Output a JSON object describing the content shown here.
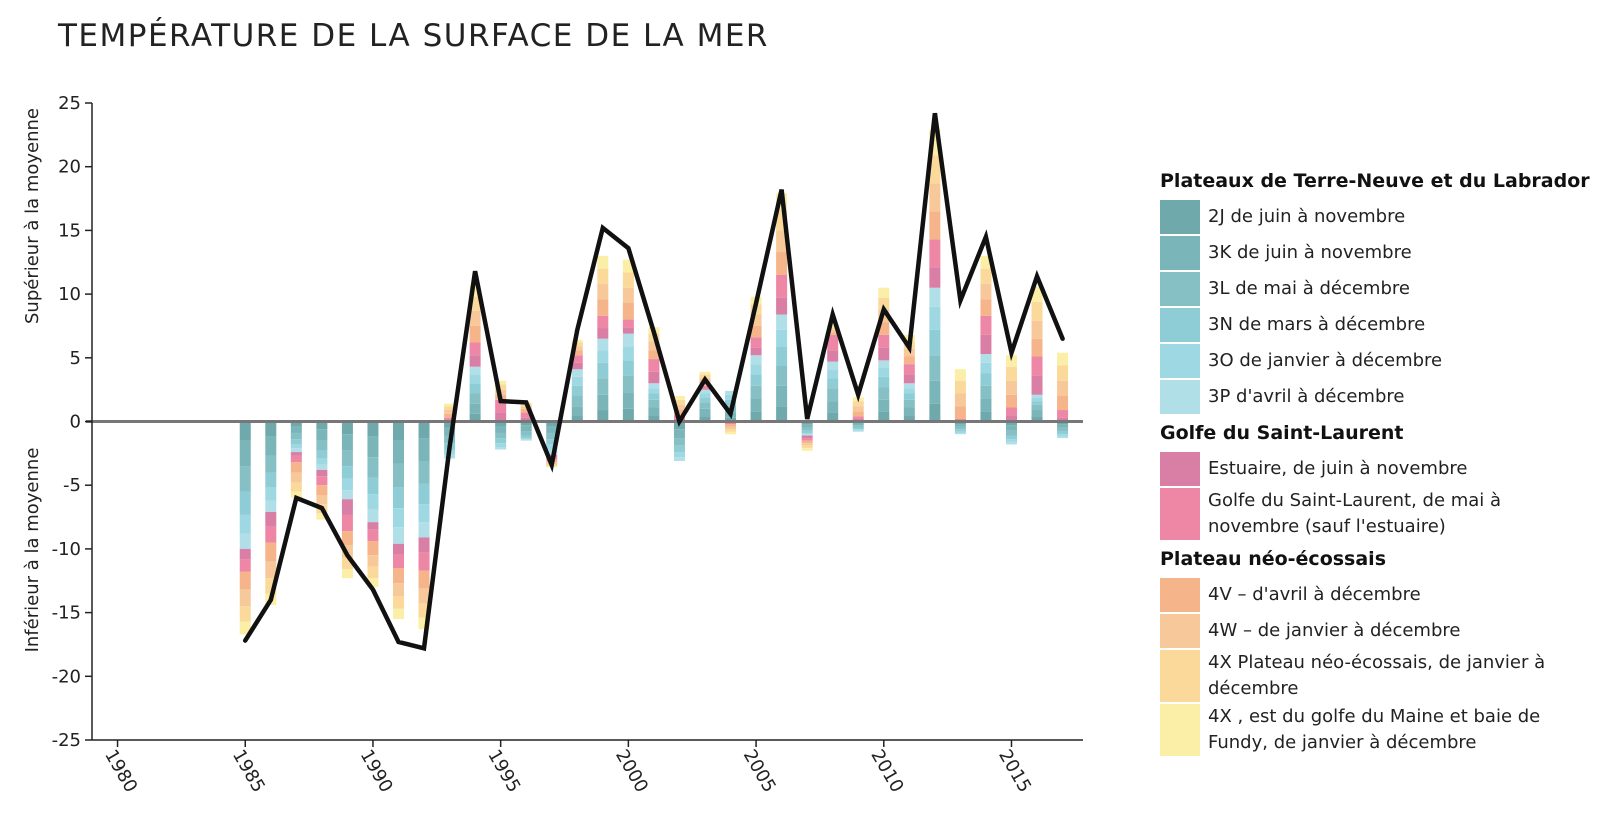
{
  "chart_data": {
    "type": "bar",
    "title": "TEMPÉRATURE DE LA SURFACE DE LA MER",
    "ylabel_top": "Supérieur à la moyenne",
    "ylabel_bottom": "Inférieur à la moyenne",
    "ylim": [
      -25,
      25
    ],
    "yticks": [
      25,
      20,
      15,
      10,
      5,
      0,
      -5,
      -10,
      -15,
      -20,
      -25
    ],
    "xlim": [
      1979,
      2017.8
    ],
    "xticks": [
      1980,
      1985,
      1990,
      1995,
      2000,
      2005,
      2010,
      2015
    ],
    "x": [
      1985,
      1986,
      1987,
      1988,
      1989,
      1990,
      1991,
      1992,
      1993,
      1994,
      1995,
      1996,
      1997,
      1998,
      1999,
      2000,
      2001,
      2002,
      2003,
      2004,
      2005,
      2006,
      2007,
      2008,
      2009,
      2010,
      2011,
      2012,
      2013,
      2014,
      2015,
      2016,
      2017
    ],
    "series": [
      {
        "name": "2J de juin à novembre",
        "color": "#6fa9ab",
        "values": [
          -1.5,
          -1.2,
          -0.4,
          -0.6,
          -1.0,
          -1.2,
          -1.5,
          -1.3,
          -0.5,
          0.6,
          -0.4,
          -0.3,
          -0.4,
          0.5,
          0.9,
          1.0,
          0.5,
          -0.6,
          0.4,
          0.3,
          0.8,
          1.2,
          -0.2,
          0.7,
          -0.1,
          0.8,
          0.5,
          1.4,
          -0.2,
          0.8,
          -0.3,
          0.4,
          -0.2
        ]
      },
      {
        "name": "3K de juin à novembre",
        "color": "#7ab6b9",
        "values": [
          -2.0,
          -1.5,
          -0.5,
          -0.9,
          -1.3,
          -1.6,
          -1.8,
          -1.8,
          -0.6,
          0.8,
          -0.5,
          -0.5,
          -0.5,
          0.7,
          1.2,
          1.3,
          0.6,
          -0.7,
          0.6,
          0.4,
          1.0,
          1.6,
          -0.3,
          0.9,
          -0.2,
          0.9,
          0.6,
          1.8,
          -0.2,
          1.0,
          -0.4,
          0.5,
          -0.3
        ]
      },
      {
        "name": "3L de mai à décembre",
        "color": "#86c0c4",
        "values": [
          -2.0,
          -1.3,
          -0.5,
          -0.8,
          -1.2,
          -1.6,
          -1.9,
          -1.8,
          -0.6,
          0.8,
          -0.4,
          -0.3,
          -0.5,
          0.8,
          1.3,
          1.3,
          0.6,
          -0.6,
          0.5,
          0.5,
          1.0,
          1.6,
          -0.2,
          1.0,
          -0.2,
          1.0,
          0.6,
          2.0,
          -0.2,
          1.0,
          -0.4,
          0.4,
          -0.3
        ]
      },
      {
        "name": "3N de mars à décembre",
        "color": "#8fcdd6",
        "values": [
          -1.8,
          -1.2,
          -0.4,
          -0.6,
          -1.0,
          -1.3,
          -1.6,
          -1.6,
          -0.5,
          0.8,
          -0.4,
          -0.2,
          -0.4,
          0.8,
          1.2,
          1.2,
          0.5,
          -0.5,
          0.4,
          0.5,
          0.9,
          1.5,
          -0.2,
          0.8,
          -0.1,
          0.8,
          0.5,
          2.0,
          -0.2,
          1.0,
          -0.3,
          0.3,
          -0.2
        ]
      },
      {
        "name": "3O de janvier à décembre",
        "color": "#9dd8e3",
        "values": [
          -1.5,
          -1.0,
          -0.3,
          -0.5,
          -0.9,
          -1.2,
          -1.5,
          -1.4,
          -0.4,
          0.7,
          -0.3,
          -0.1,
          -0.4,
          0.7,
          1.0,
          1.1,
          0.4,
          -0.4,
          0.3,
          0.4,
          0.8,
          1.3,
          -0.1,
          0.7,
          -0.1,
          0.7,
          0.4,
          1.8,
          -0.1,
          0.8,
          -0.2,
          0.3,
          -0.2
        ]
      },
      {
        "name": "3P d'avril à décembre",
        "color": "#b1dfe8",
        "values": [
          -1.2,
          -0.9,
          -0.3,
          -0.4,
          -0.7,
          -1.0,
          -1.3,
          -1.2,
          -0.3,
          0.6,
          -0.2,
          -0.1,
          -0.4,
          0.6,
          0.9,
          1.0,
          0.4,
          -0.3,
          0.3,
          0.3,
          0.7,
          1.2,
          -0.1,
          0.6,
          -0.1,
          0.6,
          0.4,
          1.5,
          -0.1,
          0.7,
          -0.2,
          0.2,
          -0.1
        ]
      },
      {
        "name": "Estuaire, de juin à novembre",
        "color": "#d97ea4",
        "values": [
          -0.8,
          -1.1,
          -0.3,
          -0.5,
          -1.2,
          -0.6,
          -0.8,
          -1.2,
          0.1,
          0.9,
          0.7,
          0.3,
          -0.2,
          0.5,
          0.8,
          0.5,
          0.9,
          0.2,
          0.1,
          -0.1,
          0.6,
          1.3,
          -0.2,
          0.9,
          0.2,
          1.0,
          0.7,
          1.6,
          0.1,
          1.5,
          0.5,
          1.5,
          0.3
        ]
      },
      {
        "name": "Golfe du Saint-Laurent, de mai à novembre (sauf l'estuaire)",
        "color": "#ee86a6",
        "values": [
          -1.0,
          -1.3,
          -0.5,
          -0.7,
          -1.3,
          -0.9,
          -1.1,
          -1.4,
          0.2,
          1.0,
          1.0,
          0.4,
          -0.2,
          0.6,
          1.0,
          0.6,
          1.0,
          0.3,
          0.2,
          -0.1,
          0.8,
          1.8,
          -0.2,
          1.2,
          0.2,
          1.0,
          0.8,
          2.2,
          0.1,
          1.5,
          0.6,
          1.5,
          0.6
        ]
      },
      {
        "name": "4V – d'avril à décembre",
        "color": "#f5b48a",
        "values": [
          -1.4,
          -1.5,
          -0.8,
          -0.8,
          -1.1,
          -1.1,
          -1.2,
          -1.4,
          0.3,
          1.3,
          0.4,
          0.3,
          -0.2,
          0.4,
          1.3,
          1.3,
          0.7,
          0.4,
          0.3,
          -0.2,
          0.9,
          1.8,
          -0.2,
          0.2,
          0.4,
          1.0,
          0.6,
          2.2,
          1.0,
          1.3,
          1.0,
          1.4,
          1.1
        ]
      },
      {
        "name": "4W – de janvier à décembre",
        "color": "#f7c99a",
        "values": [
          -1.3,
          -1.3,
          -0.8,
          -0.7,
          -1.0,
          -0.9,
          -1.0,
          -1.2,
          0.3,
          1.2,
          0.4,
          0.2,
          -0.2,
          0.3,
          1.2,
          1.2,
          0.7,
          0.4,
          0.3,
          -0.2,
          0.9,
          1.7,
          -0.2,
          0.2,
          0.4,
          1.0,
          0.6,
          2.2,
          1.0,
          1.2,
          1.1,
          1.4,
          1.2
        ]
      },
      {
        "name": "4X Plateau néo-écossais, de janvier à décembre",
        "color": "#fad99a",
        "values": [
          -1.2,
          -1.2,
          -0.7,
          -0.7,
          -0.9,
          -0.9,
          -1.0,
          -1.1,
          0.3,
          1.1,
          0.4,
          0.2,
          -0.1,
          0.3,
          1.2,
          1.2,
          0.6,
          0.4,
          0.3,
          -0.2,
          0.8,
          1.6,
          -0.2,
          0.2,
          0.4,
          0.9,
          0.6,
          2.2,
          1.0,
          1.2,
          1.1,
          1.5,
          1.2
        ]
      },
      {
        "name": "4X , est du golfe du Maine et baie de Fundy, de janvier à décembre",
        "color": "#fbeea6",
        "values": [
          -1.0,
          -0.9,
          -0.5,
          -0.5,
          -0.7,
          -0.7,
          -0.8,
          -0.9,
          0.2,
          0.9,
          0.3,
          0.1,
          -0.1,
          0.2,
          1.0,
          1.0,
          0.5,
          0.3,
          0.2,
          -0.2,
          0.6,
          1.3,
          -0.2,
          0.2,
          0.3,
          0.8,
          0.5,
          2.0,
          0.9,
          1.0,
          0.9,
          1.2,
          1.0
        ]
      }
    ],
    "total": {
      "color": "#111111",
      "values": [
        -17.2,
        -14.0,
        -6.0,
        -6.8,
        -10.5,
        -13.2,
        -17.3,
        -17.8,
        -2.0,
        11.8,
        1.6,
        1.5,
        -3.4,
        7.2,
        15.2,
        13.6,
        7.0,
        0.0,
        3.3,
        0.6,
        9.3,
        18.2,
        0.2,
        8.4,
        2.1,
        8.8,
        5.8,
        24.2,
        9.5,
        14.5,
        5.4,
        11.4,
        6.5
      ]
    },
    "grid": false
  },
  "legend": {
    "groups": [
      {
        "title": "Plateaux de Terre-Neuve et du Labrador",
        "items": [
          {
            "label": "2J de juin à novembre",
            "color": "#6fa9ab"
          },
          {
            "label": "3K de juin à novembre",
            "color": "#7ab6b9"
          },
          {
            "label": "3L de mai à décembre",
            "color": "#86c0c4"
          },
          {
            "label": "3N de mars à décembre",
            "color": "#8fcdd6"
          },
          {
            "label": "3O de janvier à décembre",
            "color": "#9dd8e3"
          },
          {
            "label": "3P d'avril à décembre",
            "color": "#b1dfe8"
          }
        ]
      },
      {
        "title": "Golfe du Saint-Laurent",
        "items": [
          {
            "label": "Estuaire, de juin à novembre",
            "color": "#d97ea4"
          },
          {
            "label": "Golfe du Saint-Laurent, de mai à novembre (sauf l'estuaire)",
            "color": "#ee86a6"
          }
        ]
      },
      {
        "title": "Plateau néo-écossais",
        "items": [
          {
            "label": "4V – d'avril à décembre",
            "color": "#f5b48a"
          },
          {
            "label": "4W – de janvier à décembre",
            "color": "#f7c99a"
          },
          {
            "label": "4X Plateau néo-écossais, de janvier à décembre",
            "color": "#fad99a"
          },
          {
            "label": "4X , est du golfe du Maine et baie de Fundy, de janvier à décembre",
            "color": "#fbeea6"
          }
        ]
      }
    ]
  }
}
